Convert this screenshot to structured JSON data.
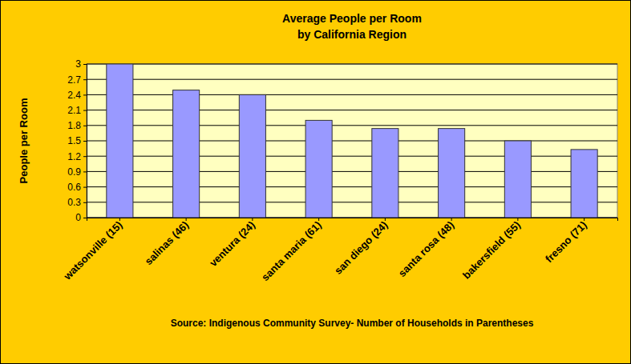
{
  "chart_data": {
    "type": "bar",
    "title": "Average People per Room",
    "subtitle": "by California Region",
    "y_label": "People per Room",
    "annotations": [
      "Source: Indigenous Community Survey- Number of Households in Parentheses"
    ],
    "categories": [
      "watsonville (15)",
      "salinas (46)",
      "ventura (24)",
      "santa maria (61)",
      "san diego (24)",
      "santa rosa (48)",
      "bakersfield (55)",
      "fresno (71)"
    ],
    "values": [
      3.0,
      2.49,
      2.4,
      1.9,
      1.74,
      1.74,
      1.5,
      1.33
    ],
    "color": "#9999ff",
    "ylim": [
      0,
      3
    ],
    "yticks": [
      0,
      0.3,
      0.6,
      0.9,
      1.2,
      1.5,
      1.8,
      2.1,
      2.4,
      2.7,
      3
    ],
    "grid": true
  }
}
